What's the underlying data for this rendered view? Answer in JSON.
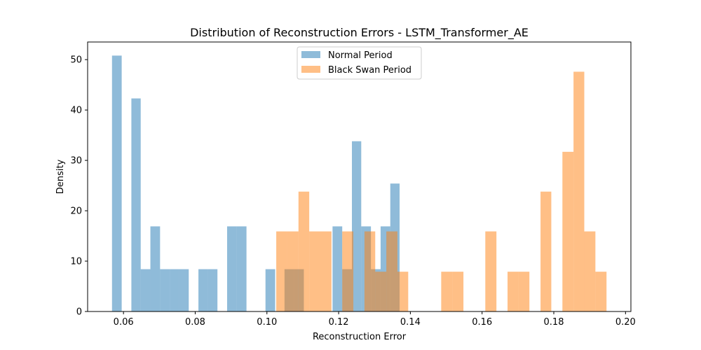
{
  "chart_data": {
    "type": "histogram",
    "title": "Distribution of Reconstruction Errors - LSTM_Transformer_AE",
    "xlabel": "Reconstruction Error",
    "ylabel": "Density",
    "xlim": [
      0.05,
      0.2015
    ],
    "ylim": [
      0,
      53.5
    ],
    "xticks": [
      "0.06",
      "0.08",
      "0.10",
      "0.12",
      "0.14",
      "0.16",
      "0.18",
      "0.20"
    ],
    "yticks": [
      "0",
      "10",
      "20",
      "30",
      "40",
      "50"
    ],
    "legend_position": "upper center",
    "series": [
      {
        "name": "Normal Period",
        "color": "#1f77b4",
        "alpha": 0.5,
        "bins": [
          {
            "x0": 0.0568,
            "x1": 0.0595,
            "density": 50.8
          },
          {
            "x0": 0.0595,
            "x1": 0.0622,
            "density": 0
          },
          {
            "x0": 0.0622,
            "x1": 0.0648,
            "density": 42.3
          },
          {
            "x0": 0.0648,
            "x1": 0.0675,
            "density": 8.4
          },
          {
            "x0": 0.0675,
            "x1": 0.0702,
            "density": 16.9
          },
          {
            "x0": 0.0702,
            "x1": 0.0729,
            "density": 8.4
          },
          {
            "x0": 0.0729,
            "x1": 0.0755,
            "density": 8.4
          },
          {
            "x0": 0.0755,
            "x1": 0.0782,
            "density": 8.4
          },
          {
            "x0": 0.0782,
            "x1": 0.0809,
            "density": 0
          },
          {
            "x0": 0.0809,
            "x1": 0.0836,
            "density": 8.4
          },
          {
            "x0": 0.0836,
            "x1": 0.0862,
            "density": 8.4
          },
          {
            "x0": 0.0862,
            "x1": 0.0889,
            "density": 0
          },
          {
            "x0": 0.0889,
            "x1": 0.0916,
            "density": 16.9
          },
          {
            "x0": 0.0916,
            "x1": 0.0943,
            "density": 16.9
          },
          {
            "x0": 0.0943,
            "x1": 0.0969,
            "density": 0
          },
          {
            "x0": 0.0969,
            "x1": 0.0996,
            "density": 0
          },
          {
            "x0": 0.0996,
            "x1": 0.1023,
            "density": 8.4
          },
          {
            "x0": 0.1023,
            "x1": 0.1049,
            "density": 0
          },
          {
            "x0": 0.1049,
            "x1": 0.1076,
            "density": 8.4
          },
          {
            "x0": 0.1076,
            "x1": 0.1103,
            "density": 8.4
          },
          {
            "x0": 0.1103,
            "x1": 0.113,
            "density": 0
          },
          {
            "x0": 0.113,
            "x1": 0.1156,
            "density": 0
          },
          {
            "x0": 0.1156,
            "x1": 0.1183,
            "density": 0
          },
          {
            "x0": 0.1183,
            "x1": 0.121,
            "density": 16.9
          },
          {
            "x0": 0.121,
            "x1": 0.1237,
            "density": 8.4
          },
          {
            "x0": 0.1237,
            "x1": 0.1263,
            "density": 33.8
          },
          {
            "x0": 0.1263,
            "x1": 0.129,
            "density": 16.9
          },
          {
            "x0": 0.129,
            "x1": 0.1317,
            "density": 8.4
          },
          {
            "x0": 0.1317,
            "x1": 0.1344,
            "density": 16.9
          },
          {
            "x0": 0.1344,
            "x1": 0.137,
            "density": 25.4
          }
        ]
      },
      {
        "name": "Black Swan Period",
        "color": "#ff7f0e",
        "alpha": 0.5,
        "bins": [
          {
            "x0": 0.1026,
            "x1": 0.1057,
            "density": 15.9
          },
          {
            "x0": 0.1057,
            "x1": 0.1088,
            "density": 15.9
          },
          {
            "x0": 0.1088,
            "x1": 0.1118,
            "density": 23.8
          },
          {
            "x0": 0.1118,
            "x1": 0.1149,
            "density": 15.9
          },
          {
            "x0": 0.1149,
            "x1": 0.118,
            "density": 15.9
          },
          {
            "x0": 0.118,
            "x1": 0.121,
            "density": 0
          },
          {
            "x0": 0.121,
            "x1": 0.1241,
            "density": 15.9
          },
          {
            "x0": 0.1241,
            "x1": 0.1272,
            "density": 0
          },
          {
            "x0": 0.1272,
            "x1": 0.1302,
            "density": 15.9
          },
          {
            "x0": 0.1302,
            "x1": 0.1333,
            "density": 7.9
          },
          {
            "x0": 0.1333,
            "x1": 0.1364,
            "density": 15.9
          },
          {
            "x0": 0.1364,
            "x1": 0.1394,
            "density": 7.9
          },
          {
            "x0": 0.1394,
            "x1": 0.1425,
            "density": 0
          },
          {
            "x0": 0.1425,
            "x1": 0.1456,
            "density": 0
          },
          {
            "x0": 0.1456,
            "x1": 0.1486,
            "density": 0
          },
          {
            "x0": 0.1486,
            "x1": 0.1517,
            "density": 7.9
          },
          {
            "x0": 0.1517,
            "x1": 0.1548,
            "density": 7.9
          },
          {
            "x0": 0.1548,
            "x1": 0.1579,
            "density": 0
          },
          {
            "x0": 0.1579,
            "x1": 0.1609,
            "density": 0
          },
          {
            "x0": 0.1609,
            "x1": 0.164,
            "density": 15.9
          },
          {
            "x0": 0.164,
            "x1": 0.1671,
            "density": 0
          },
          {
            "x0": 0.1671,
            "x1": 0.1701,
            "density": 7.9
          },
          {
            "x0": 0.1701,
            "x1": 0.1732,
            "density": 7.9
          },
          {
            "x0": 0.1732,
            "x1": 0.1763,
            "density": 0
          },
          {
            "x0": 0.1763,
            "x1": 0.1793,
            "density": 23.8
          },
          {
            "x0": 0.1793,
            "x1": 0.1824,
            "density": 0
          },
          {
            "x0": 0.1824,
            "x1": 0.1855,
            "density": 31.7
          },
          {
            "x0": 0.1855,
            "x1": 0.1885,
            "density": 47.6
          },
          {
            "x0": 0.1885,
            "x1": 0.1916,
            "density": 15.9
          },
          {
            "x0": 0.1916,
            "x1": 0.1947,
            "density": 7.9
          }
        ]
      }
    ]
  }
}
